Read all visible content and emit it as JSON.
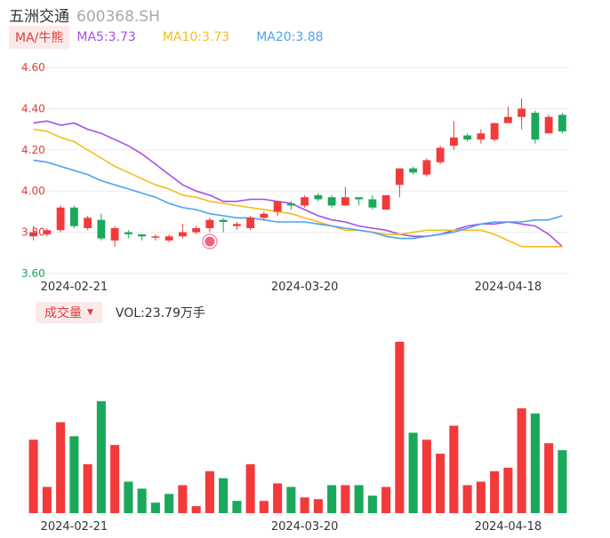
{
  "header": {
    "name": "五洲交通",
    "code": "600368.SH"
  },
  "ma_legend": {
    "badge": "MA/牛熊",
    "items": [
      {
        "label": "MA5:3.73",
        "color": "#a64ee6"
      },
      {
        "label": "MA10:3.73",
        "color": "#f5bd1f"
      },
      {
        "label": "MA20:3.88",
        "color": "#4da3f0"
      }
    ]
  },
  "volume_legend": {
    "badge": "成交量",
    "text": "VOL:23.79万手"
  },
  "colors": {
    "up": "#f23a3a",
    "down": "#1aa85a",
    "grid": "#ececec",
    "axis_red": "#e33b3b",
    "axis_green": "#1aa85a"
  },
  "chart_data": [
    {
      "type": "candlestick",
      "y_ticks": [
        "4.60",
        "4.40",
        "4.20",
        "4.00",
        "3.80",
        "3.60"
      ],
      "y_range": [
        3.6,
        4.6
      ],
      "x_labels": [
        {
          "index": 3,
          "label": "2024-02-21"
        },
        {
          "index": 20,
          "label": "2024-03-20"
        },
        {
          "index": 35,
          "label": "2024-04-18"
        }
      ],
      "candles": [
        [
          3.78,
          3.8,
          3.76,
          3.83
        ],
        [
          3.79,
          3.81,
          3.78,
          3.82
        ],
        [
          3.81,
          3.92,
          3.8,
          3.93
        ],
        [
          3.92,
          3.83,
          3.82,
          3.93
        ],
        [
          3.82,
          3.87,
          3.81,
          3.88
        ],
        [
          3.86,
          3.77,
          3.76,
          3.89
        ],
        [
          3.76,
          3.82,
          3.73,
          3.83
        ],
        [
          3.8,
          3.79,
          3.77,
          3.81
        ],
        [
          3.79,
          3.78,
          3.76,
          3.79
        ],
        [
          3.78,
          3.78,
          3.76,
          3.79
        ],
        [
          3.76,
          3.78,
          3.75,
          3.79
        ],
        [
          3.78,
          3.8,
          3.77,
          3.84
        ],
        [
          3.8,
          3.82,
          3.79,
          3.83
        ],
        [
          3.82,
          3.86,
          3.8,
          3.87
        ],
        [
          3.86,
          3.85,
          3.8,
          3.87
        ],
        [
          3.83,
          3.84,
          3.81,
          3.85
        ],
        [
          3.82,
          3.87,
          3.81,
          3.88
        ],
        [
          3.87,
          3.89,
          3.86,
          3.9
        ],
        [
          3.9,
          3.95,
          3.88,
          3.95
        ],
        [
          3.94,
          3.93,
          3.91,
          3.95
        ],
        [
          3.93,
          3.97,
          3.92,
          3.98
        ],
        [
          3.98,
          3.96,
          3.95,
          3.99
        ],
        [
          3.97,
          3.93,
          3.92,
          3.98
        ],
        [
          3.93,
          3.97,
          3.93,
          4.02
        ],
        [
          3.97,
          3.96,
          3.93,
          3.97
        ],
        [
          3.96,
          3.92,
          3.91,
          3.98
        ],
        [
          3.91,
          3.98,
          3.91,
          3.98
        ],
        [
          4.03,
          4.11,
          3.97,
          4.11
        ],
        [
          4.11,
          4.09,
          4.08,
          4.12
        ],
        [
          4.08,
          4.15,
          4.07,
          4.16
        ],
        [
          4.14,
          4.21,
          4.13,
          4.22
        ],
        [
          4.22,
          4.26,
          4.2,
          4.34
        ],
        [
          4.27,
          4.25,
          4.24,
          4.28
        ],
        [
          4.25,
          4.28,
          4.23,
          4.3
        ],
        [
          4.25,
          4.33,
          4.24,
          4.33
        ],
        [
          4.33,
          4.36,
          4.33,
          4.41
        ],
        [
          4.36,
          4.4,
          4.3,
          4.45
        ],
        [
          4.38,
          4.25,
          4.23,
          4.39
        ],
        [
          4.28,
          4.36,
          4.28,
          4.37
        ],
        [
          4.37,
          4.29,
          4.28,
          4.38
        ]
      ],
      "ma5": [
        4.33,
        4.34,
        4.32,
        4.33,
        4.3,
        4.28,
        4.25,
        4.22,
        4.18,
        4.13,
        4.08,
        4.03,
        4.0,
        3.98,
        3.95,
        3.95,
        3.96,
        3.96,
        3.95,
        3.94,
        3.91,
        3.88,
        3.86,
        3.85,
        3.83,
        3.82,
        3.81,
        3.79,
        3.78,
        3.78,
        3.79,
        3.81,
        3.83,
        3.84,
        3.84,
        3.85,
        3.84,
        3.83,
        3.79,
        3.73
      ],
      "ma10": [
        4.3,
        4.29,
        4.26,
        4.24,
        4.2,
        4.16,
        4.12,
        4.09,
        4.06,
        4.03,
        4.01,
        3.98,
        3.97,
        3.95,
        3.94,
        3.93,
        3.92,
        3.91,
        3.9,
        3.89,
        3.87,
        3.85,
        3.83,
        3.81,
        3.81,
        3.8,
        3.79,
        3.79,
        3.8,
        3.81,
        3.81,
        3.81,
        3.81,
        3.81,
        3.79,
        3.76,
        3.73,
        3.73,
        3.73,
        3.73
      ],
      "ma20": [
        4.15,
        4.14,
        4.12,
        4.1,
        4.08,
        4.05,
        4.03,
        4.01,
        3.99,
        3.97,
        3.94,
        3.92,
        3.91,
        3.89,
        3.88,
        3.87,
        3.87,
        3.86,
        3.85,
        3.85,
        3.85,
        3.84,
        3.83,
        3.82,
        3.81,
        3.8,
        3.78,
        3.77,
        3.77,
        3.78,
        3.79,
        3.8,
        3.82,
        3.84,
        3.85,
        3.85,
        3.85,
        3.86,
        3.86,
        3.88
      ]
    },
    {
      "type": "bar",
      "name": "成交量",
      "x_labels": [
        {
          "index": 3,
          "label": "2024-02-21"
        },
        {
          "index": 20,
          "label": "2024-03-20"
        },
        {
          "index": 35,
          "label": "2024-04-18"
        }
      ],
      "values": [
        42,
        15,
        52,
        44,
        28,
        64,
        39,
        18,
        14,
        6,
        11,
        16,
        4,
        24,
        20,
        7,
        28,
        7,
        17,
        15,
        9,
        8,
        16,
        16,
        16,
        10,
        15,
        98,
        46,
        42,
        34,
        50,
        16,
        18,
        24,
        26,
        60,
        57,
        40,
        36
      ],
      "directions": [
        "up",
        "up",
        "up",
        "down",
        "up",
        "down",
        "up",
        "down",
        "down",
        "down",
        "down",
        "up",
        "up",
        "up",
        "down",
        "down",
        "up",
        "up",
        "up",
        "down",
        "up",
        "up",
        "down",
        "up",
        "down",
        "down",
        "up",
        "up",
        "down",
        "up",
        "up",
        "up",
        "up",
        "up",
        "up",
        "up",
        "up",
        "down",
        "up",
        "down"
      ]
    }
  ]
}
